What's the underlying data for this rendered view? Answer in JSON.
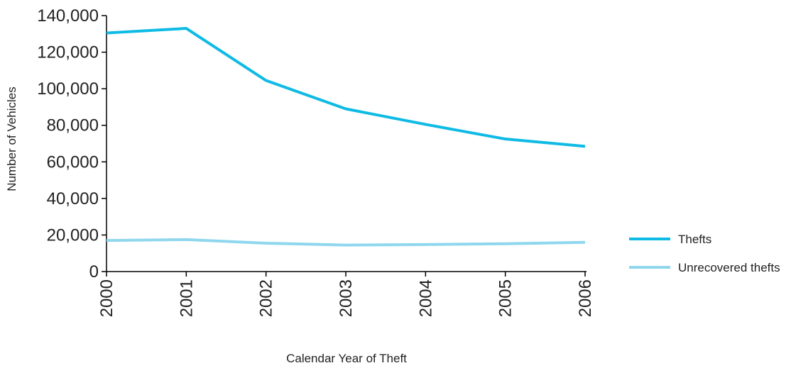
{
  "chart_data": {
    "type": "line",
    "title": "",
    "xlabel": "Calendar Year of Theft",
    "ylabel": "Number of Vehicles",
    "x": [
      "2000",
      "2001",
      "2002",
      "2003",
      "2004",
      "2005",
      "2006"
    ],
    "ylim": [
      0,
      140000
    ],
    "yticks": [
      "0",
      "20,000",
      "40,000",
      "60,000",
      "80,000",
      "100,000",
      "120,000",
      "140,000"
    ],
    "ytick_values": [
      0,
      20000,
      40000,
      60000,
      80000,
      100000,
      120000,
      140000
    ],
    "grid": false,
    "legend_position": "right",
    "series": [
      {
        "name": "Thefts",
        "color": "#0fbbe4",
        "values": [
          130500,
          133000,
          104500,
          89000,
          80500,
          72500,
          68500
        ]
      },
      {
        "name": "Unrecovered thefts",
        "color": "#8fd7ee",
        "values": [
          17000,
          17500,
          15500,
          14500,
          14800,
          15200,
          16000
        ]
      }
    ]
  }
}
